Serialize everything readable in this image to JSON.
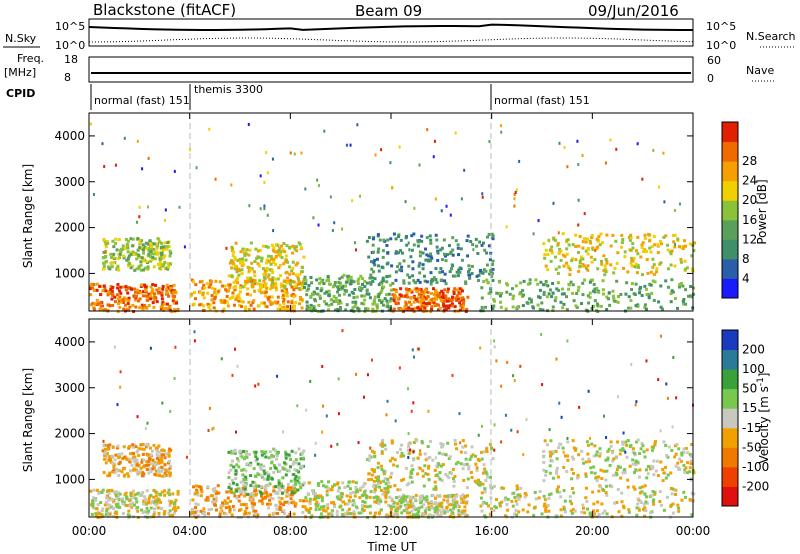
{
  "header": {
    "radar": "Blackstone (fitACF)",
    "beam": "Beam 09",
    "date": "09/Jun/2016"
  },
  "strip_labels": {
    "nsky": "N.Sky",
    "freq_top": "Freq.",
    "freq_unit": "[MHz]",
    "cpid": "CPID",
    "nsearch": "N.Search",
    "nave": "Nave",
    "nsky_ticks": [
      "10^5",
      "10^0"
    ],
    "freq_ticks": [
      "18",
      "8"
    ],
    "right_nsearch_ticks": [
      "10^5",
      "10^0"
    ],
    "right_nave_ticks": [
      "60",
      "0"
    ],
    "cpid_segments": [
      {
        "label": "normal (fast) 151",
        "start_h": 0
      },
      {
        "label": "themis 3300",
        "start_h": 4
      },
      {
        "label": "normal (fast) 151",
        "start_h": 16
      }
    ]
  },
  "colors": {
    "power": [
      "#1a1aff",
      "#2a5ea8",
      "#3f8f6a",
      "#5aa05a",
      "#8ac23a",
      "#f0d000",
      "#f5a000",
      "#f06a00",
      "#e02000"
    ],
    "velocity": [
      "#e01010",
      "#f04000",
      "#f07a00",
      "#f0a000",
      "#c8c8c0",
      "#78c850",
      "#3aa03a",
      "#2a7a9a",
      "#1a3ac0"
    ]
  },
  "chart_data": [
    {
      "type": "heatmap",
      "name": "power",
      "ylabel": "Slant Range [km]",
      "xlabel": "",
      "x_ticks": [
        "00:00",
        "04:00",
        "08:00",
        "12:00",
        "16:00",
        "20:00",
        "00:00"
      ],
      "y_ticks": [
        "1000",
        "2000",
        "3000",
        "4000"
      ],
      "xlim_hours": [
        0,
        24
      ],
      "ylim_km": [
        180,
        4500
      ],
      "colorbar_label": "Power [dB]",
      "colorbar_ticks": [
        "4",
        "8",
        "12",
        "16",
        "20",
        "24",
        "28"
      ],
      "colorbar_range": [
        0,
        30
      ]
    },
    {
      "type": "heatmap",
      "name": "velocity",
      "ylabel": "Slant Range [km]",
      "xlabel": "Time UT",
      "x_ticks": [
        "00:00",
        "04:00",
        "08:00",
        "12:00",
        "16:00",
        "20:00",
        "00:00"
      ],
      "y_ticks": [
        "1000",
        "2000",
        "3000",
        "4000"
      ],
      "xlim_hours": [
        0,
        24
      ],
      "ylim_km": [
        180,
        4500
      ],
      "colorbar_label": "Velocity [m s^-1]",
      "colorbar_ticks": [
        "200",
        "100",
        "50",
        "15",
        "-15",
        "-50",
        "-100",
        "-200"
      ]
    }
  ]
}
